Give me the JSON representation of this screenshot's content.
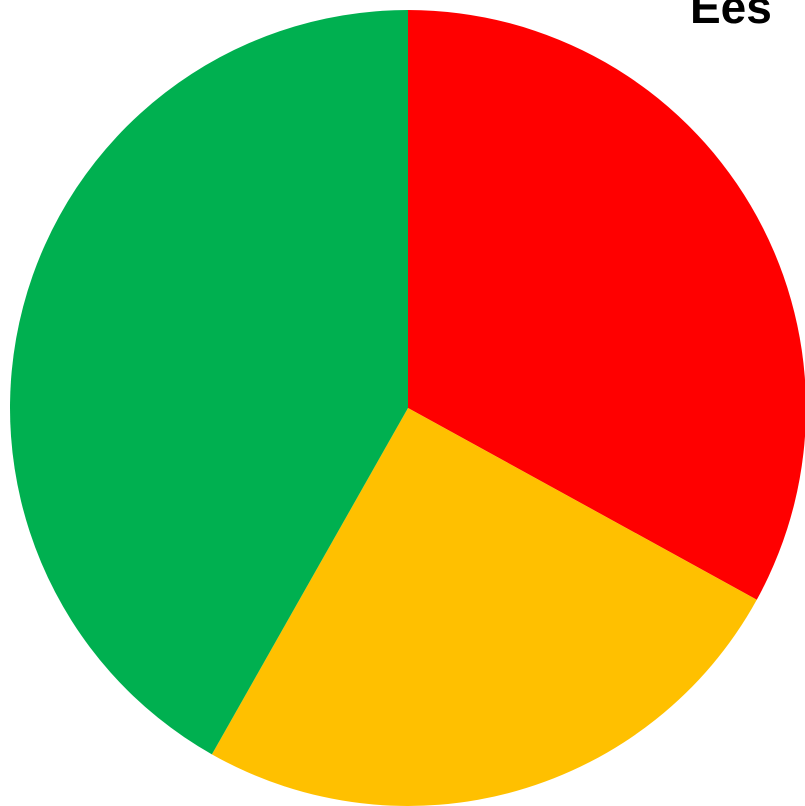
{
  "chart_data": {
    "type": "pie",
    "title": "Ees",
    "start_angle_deg": 0,
    "direction": "clockwise",
    "slices": [
      {
        "value": 33.0,
        "color": "#FF0000"
      },
      {
        "value": 25.2,
        "color": "#FFC000"
      },
      {
        "value": 41.8,
        "color": "#00B050"
      }
    ]
  }
}
